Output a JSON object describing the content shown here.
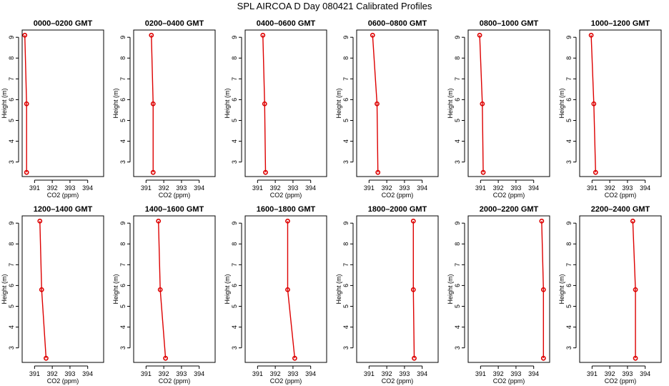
{
  "figure": {
    "title": "SPL AIRCOA D  Day 080421  Calibrated Profiles"
  },
  "colors": {
    "series": "#dd0000"
  },
  "chart_data": [
    {
      "type": "line",
      "title": "0000–0200 GMT",
      "xlabel": "CO2 (ppm)",
      "ylabel": "Height (m)",
      "xlim": [
        390.3,
        394.9
      ],
      "ylim": [
        2.3,
        9.35
      ],
      "xticks": [
        391,
        392,
        393,
        394
      ],
      "yticks": [
        3,
        4,
        5,
        6,
        7,
        8,
        9
      ],
      "x": [
        390.45,
        390.55,
        390.55
      ],
      "y": [
        9.1,
        5.8,
        2.5
      ]
    },
    {
      "type": "line",
      "title": "0200–0400 GMT",
      "xlabel": "CO2 (ppm)",
      "ylabel": "Height (m)",
      "xlim": [
        390.3,
        394.9
      ],
      "ylim": [
        2.3,
        9.35
      ],
      "xticks": [
        391,
        392,
        393,
        394
      ],
      "yticks": [
        3,
        4,
        5,
        6,
        7,
        8,
        9
      ],
      "x": [
        391.3,
        391.4,
        391.4
      ],
      "y": [
        9.1,
        5.8,
        2.5
      ]
    },
    {
      "type": "line",
      "title": "0400–0600 GMT",
      "xlabel": "CO2 (ppm)",
      "ylabel": "Height (m)",
      "xlim": [
        390.3,
        394.9
      ],
      "ylim": [
        2.3,
        9.35
      ],
      "xticks": [
        391,
        392,
        393,
        394
      ],
      "yticks": [
        3,
        4,
        5,
        6,
        7,
        8,
        9
      ],
      "x": [
        391.3,
        391.4,
        391.45
      ],
      "y": [
        9.1,
        5.8,
        2.5
      ]
    },
    {
      "type": "line",
      "title": "0600–0800 GMT",
      "xlabel": "CO2 (ppm)",
      "ylabel": "Height (m)",
      "xlim": [
        390.3,
        394.9
      ],
      "ylim": [
        2.3,
        9.35
      ],
      "xticks": [
        391,
        392,
        393,
        394
      ],
      "yticks": [
        3,
        4,
        5,
        6,
        7,
        8,
        9
      ],
      "x": [
        391.2,
        391.45,
        391.5
      ],
      "y": [
        9.1,
        5.8,
        2.5
      ]
    },
    {
      "type": "line",
      "title": "0800–1000 GMT",
      "xlabel": "CO2 (ppm)",
      "ylabel": "Height (m)",
      "xlim": [
        390.3,
        394.9
      ],
      "ylim": [
        2.3,
        9.35
      ],
      "xticks": [
        391,
        392,
        393,
        394
      ],
      "yticks": [
        3,
        4,
        5,
        6,
        7,
        8,
        9
      ],
      "x": [
        390.95,
        391.1,
        391.15
      ],
      "y": [
        9.1,
        5.8,
        2.5
      ]
    },
    {
      "type": "line",
      "title": "1000–1200 GMT",
      "xlabel": "CO2 (ppm)",
      "ylabel": "Height (m)",
      "xlim": [
        390.3,
        394.9
      ],
      "ylim": [
        2.3,
        9.35
      ],
      "xticks": [
        391,
        392,
        393,
        394
      ],
      "yticks": [
        3,
        4,
        5,
        6,
        7,
        8,
        9
      ],
      "x": [
        390.95,
        391.1,
        391.2
      ],
      "y": [
        9.1,
        5.8,
        2.5
      ]
    },
    {
      "type": "line",
      "title": "1200–1400 GMT",
      "xlabel": "CO2 (ppm)",
      "ylabel": "Height (m)",
      "xlim": [
        390.3,
        394.9
      ],
      "ylim": [
        2.3,
        9.35
      ],
      "xticks": [
        391,
        392,
        393,
        394
      ],
      "yticks": [
        3,
        4,
        5,
        6,
        7,
        8,
        9
      ],
      "x": [
        391.3,
        391.4,
        391.65
      ],
      "y": [
        9.1,
        5.8,
        2.5
      ]
    },
    {
      "type": "line",
      "title": "1400–1600 GMT",
      "xlabel": "CO2 (ppm)",
      "ylabel": "Height (m)",
      "xlim": [
        390.3,
        394.9
      ],
      "ylim": [
        2.3,
        9.35
      ],
      "xticks": [
        391,
        392,
        393,
        394
      ],
      "yticks": [
        3,
        4,
        5,
        6,
        7,
        8,
        9
      ],
      "x": [
        391.7,
        391.8,
        392.1
      ],
      "y": [
        9.1,
        5.8,
        2.5
      ]
    },
    {
      "type": "line",
      "title": "1600–1800 GMT",
      "xlabel": "CO2 (ppm)",
      "ylabel": "Height (m)",
      "xlim": [
        390.3,
        394.9
      ],
      "ylim": [
        2.3,
        9.35
      ],
      "xticks": [
        391,
        392,
        393,
        394
      ],
      "yticks": [
        3,
        4,
        5,
        6,
        7,
        8,
        9
      ],
      "x": [
        392.7,
        392.7,
        393.1
      ],
      "y": [
        9.1,
        5.8,
        2.5
      ]
    },
    {
      "type": "line",
      "title": "1800–2000 GMT",
      "xlabel": "CO2 (ppm)",
      "ylabel": "Height (m)",
      "xlim": [
        390.3,
        394.9
      ],
      "ylim": [
        2.3,
        9.35
      ],
      "xticks": [
        391,
        392,
        393,
        394
      ],
      "yticks": [
        3,
        4,
        5,
        6,
        7,
        8,
        9
      ],
      "x": [
        393.5,
        393.5,
        393.55
      ],
      "y": [
        9.1,
        5.8,
        2.5
      ]
    },
    {
      "type": "line",
      "title": "2000–2200 GMT",
      "xlabel": "CO2 (ppm)",
      "ylabel": "Height (m)",
      "xlim": [
        390.3,
        394.9
      ],
      "ylim": [
        2.3,
        9.35
      ],
      "xticks": [
        391,
        392,
        393,
        394
      ],
      "yticks": [
        3,
        4,
        5,
        6,
        7,
        8,
        9
      ],
      "x": [
        394.45,
        394.55,
        394.55
      ],
      "y": [
        9.1,
        5.8,
        2.5
      ]
    },
    {
      "type": "line",
      "title": "2200–2400 GMT",
      "xlabel": "CO2 (ppm)",
      "ylabel": "Height (m)",
      "xlim": [
        390.3,
        394.9
      ],
      "ylim": [
        2.3,
        9.35
      ],
      "xticks": [
        391,
        392,
        393,
        394
      ],
      "yticks": [
        3,
        4,
        5,
        6,
        7,
        8,
        9
      ],
      "x": [
        393.3,
        393.45,
        393.45
      ],
      "y": [
        9.1,
        5.8,
        2.5
      ]
    }
  ]
}
